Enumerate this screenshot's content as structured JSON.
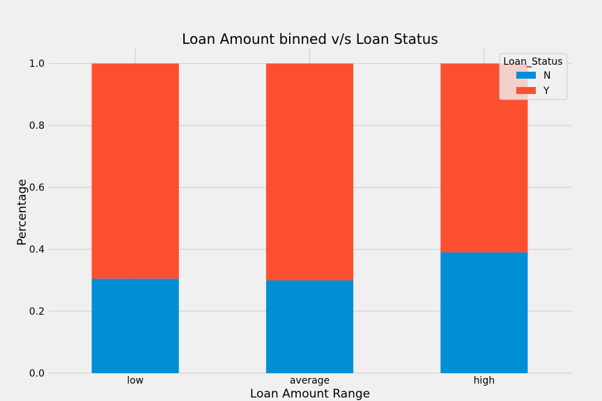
{
  "chart_data": {
    "type": "bar",
    "stacked": true,
    "title": "Loan Amount binned v/s Loan Status",
    "xlabel": "Loan Amount Range",
    "ylabel": "Percentage",
    "categories": [
      "low",
      "average",
      "high"
    ],
    "series": [
      {
        "name": "N",
        "values": [
          0.305,
          0.3,
          0.39
        ],
        "color": "#008fd5"
      },
      {
        "name": "Y",
        "values": [
          0.695,
          0.7,
          0.61
        ],
        "color": "#fc4f30"
      }
    ],
    "ylim": [
      0,
      1.05
    ],
    "yticks": [
      "0.0",
      "0.2",
      "0.4",
      "0.6",
      "0.8",
      "1.0"
    ],
    "ytick_values": [
      0,
      0.2,
      0.4,
      0.6,
      0.8,
      1.0
    ],
    "grid": true,
    "legend": {
      "title": "Loan_Status",
      "placement": "top-right"
    }
  }
}
